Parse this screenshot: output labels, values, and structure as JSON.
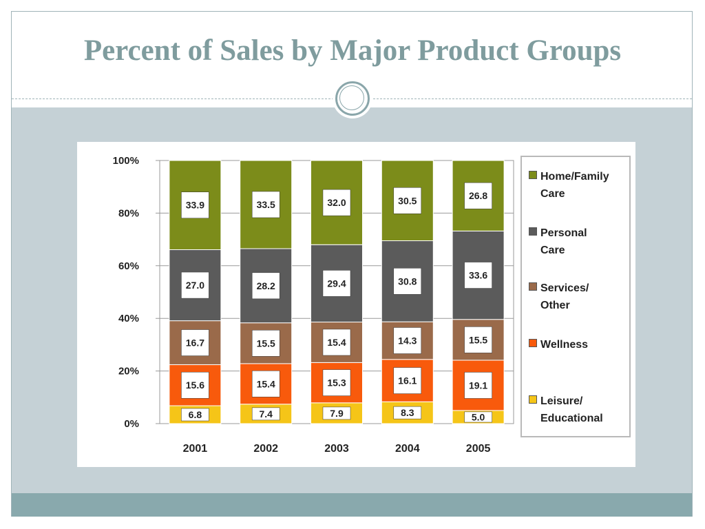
{
  "slide": {
    "title": "Percent of Sales by Major Product Groups"
  },
  "chart_data": {
    "type": "bar",
    "stacked": true,
    "categories": [
      "2001",
      "2002",
      "2003",
      "2004",
      "2005"
    ],
    "series": [
      {
        "name": "Leisure/ Educational",
        "color": "#f5c518",
        "values": [
          6.8,
          7.4,
          7.9,
          8.3,
          5.0
        ]
      },
      {
        "name": "Wellness",
        "color": "#f85a0c",
        "values": [
          15.6,
          15.4,
          15.3,
          16.1,
          19.1
        ]
      },
      {
        "name": "Services/ Other",
        "color": "#9a6a4a",
        "values": [
          16.7,
          15.5,
          15.4,
          14.3,
          15.5
        ]
      },
      {
        "name": "Personal Care",
        "color": "#5b5b5b",
        "values": [
          27.0,
          28.2,
          29.4,
          30.8,
          33.6
        ]
      },
      {
        "name": "Home/Family Care",
        "color": "#7c8c1a",
        "values": [
          33.9,
          33.5,
          32.0,
          30.5,
          26.8
        ]
      }
    ],
    "value_labels": [
      [
        "6.8",
        "7.4",
        "7.9",
        "8.3",
        "5.0"
      ],
      [
        "15.6",
        "15.4",
        "15.3",
        "16.1",
        "19.1"
      ],
      [
        "16.7",
        "15.5",
        "15.4",
        "14.3",
        "15.5"
      ],
      [
        "27.0",
        "28.2",
        "29.4",
        "30.8",
        "33.6"
      ],
      [
        "33.9",
        "33.5",
        "32.0",
        "30.5",
        "26.8"
      ]
    ],
    "y_ticks": [
      "0%",
      "20%",
      "40%",
      "60%",
      "80%",
      "100%"
    ],
    "ylim": [
      0,
      100
    ],
    "grid": true,
    "legend": {
      "position": "right",
      "order": [
        {
          "line1": "Home/Family",
          "line2": "Care",
          "series": 4
        },
        {
          "line1": "Personal",
          "line2": "Care",
          "series": 3
        },
        {
          "line1": "Services/",
          "line2": "Other",
          "series": 2
        },
        {
          "line1": "Wellness",
          "line2": "",
          "series": 1
        },
        {
          "line1": "Leisure/",
          "line2": "Educational",
          "series": 0
        }
      ]
    }
  }
}
